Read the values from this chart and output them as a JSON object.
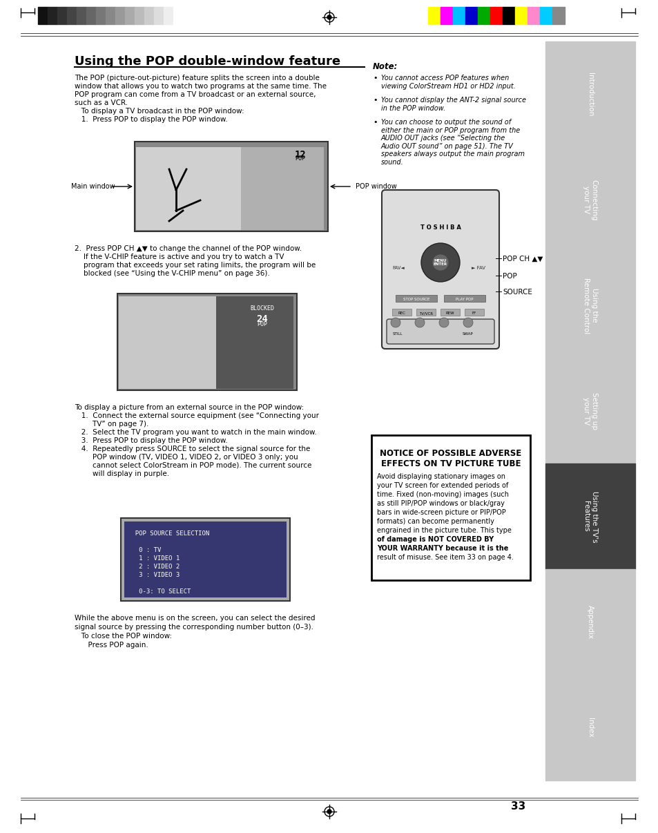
{
  "title": "Using the POP double-window feature",
  "page_number": "33",
  "bg_color": "#ffffff",
  "sidebar_bg": "#c8c8c8",
  "sidebar_active_bg": "#404040",
  "sidebar_labels": [
    "Introduction",
    "Connecting\nyour TV",
    "Using the\nRemote Control",
    "Setting up\nyour TV",
    "Using the TV's\nFeatures",
    "Appendix",
    "Index"
  ],
  "sidebar_active_index": 4,
  "main_text_col1": [
    "The POP (picture-out-picture) feature splits the screen into a double",
    "window that allows you to watch two programs at the same time. The",
    "POP program can come from a TV broadcast or an external source,",
    "such as a VCR.",
    "   To display a TV broadcast in the POP window:",
    "   1.  Press POP to display the POP window."
  ],
  "step2_text": [
    "2.  Press POP CH ▲▼ to change the channel of the POP window.",
    "    If the V-CHIP feature is active and you try to watch a TV",
    "    program that exceeds your set rating limits, the program will be",
    "    blocked (see “Using the V-CHIP menu” on page 36)."
  ],
  "external_source_steps": [
    "To display a picture from an external source in the POP window:",
    "   1.  Connect the external source equipment (see “Connecting your",
    "        TV” on page 7).",
    "   2.  Select the TV program you want to watch in the main window.",
    "   3.  Press POP to display the POP window.",
    "   4.  Repeatedly press SOURCE to select the signal source for the",
    "        POP window (TV, VIDEO 1, VIDEO 2, or VIDEO 3 only; you",
    "        cannot select ColorStream in POP mode). The current source",
    "        will display in purple."
  ],
  "close_text": [
    "While the above menu is on the screen, you can select the desired",
    "signal source by pressing the corresponding number button (0–3).",
    "   To close the POP window:",
    "      Press POP again."
  ],
  "note_title": "Note:",
  "note_bullets": [
    "You cannot access POP features when\nviewing ColorStream HD1 or HD2 input.",
    "You cannot display the ANT-2 signal source\nin the POP window.",
    "You can choose to output the sound of\neither the main or POP program from the\nAUDIO OUT jacks (see “Selecting the\nAudio OUT sound” on page 51). The TV\nspeakers always output the main program\nsound."
  ],
  "notice_title": "NOTICE OF POSSIBLE ADVERSE\nEFFECTS ON TV PICTURE TUBE",
  "notice_text_lines": [
    {
      "text": "Avoid displaying stationary images on",
      "bold": false
    },
    {
      "text": "your TV screen for extended periods of",
      "bold": false
    },
    {
      "text": "time. Fixed (non-moving) images (such",
      "bold": false
    },
    {
      "text": "as still PIP/POP windows or black/gray",
      "bold": false
    },
    {
      "text": "bars in wide-screen picture or PIP/POP",
      "bold": false
    },
    {
      "text": "formats) can become permanently",
      "bold": false
    },
    {
      "text": "engrained in the picture tube. This type",
      "bold": false
    },
    {
      "text": "of damage is NOT COVERED BY",
      "bold": true
    },
    {
      "text": "YOUR WARRANTY because it is the",
      "bold": true
    },
    {
      "text": "result of misuse. See item 33 on page 4.",
      "bold": false
    }
  ],
  "remote_labels": [
    "POP CH ▲▼",
    "POP",
    "SOURCE"
  ],
  "color_bars_left": [
    "#111111",
    "#222222",
    "#333333",
    "#444444",
    "#555555",
    "#666666",
    "#777777",
    "#888888",
    "#999999",
    "#aaaaaa",
    "#bbbbbb",
    "#cccccc",
    "#dddddd",
    "#eeeeee",
    "#ffffff"
  ],
  "color_bars_right": [
    "#ffff00",
    "#ff00ff",
    "#00bfff",
    "#0000cc",
    "#00aa00",
    "#ff0000",
    "#000000",
    "#ffff00",
    "#ff88cc",
    "#00ccff",
    "#888888"
  ]
}
